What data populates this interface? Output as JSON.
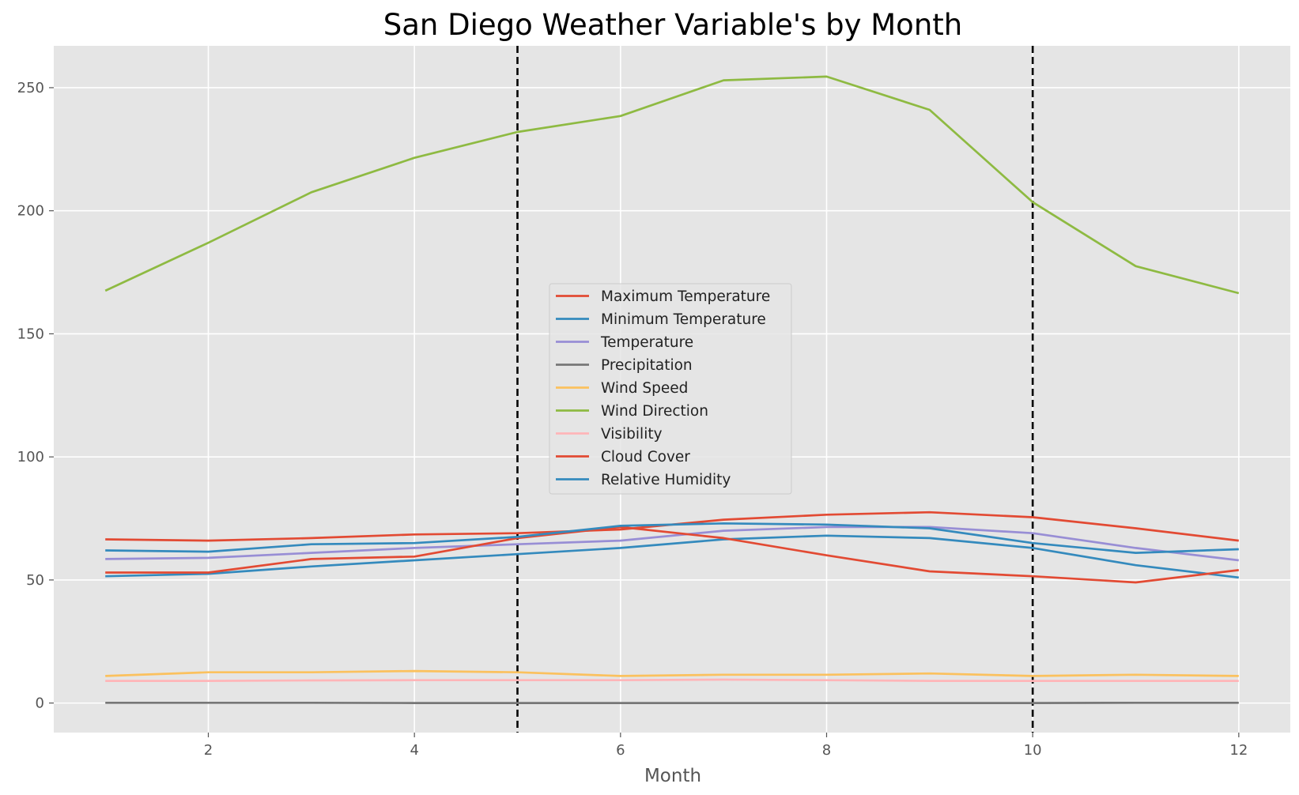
{
  "chart_data": {
    "type": "line",
    "title": "San Diego Weather Variable's by Month",
    "xlabel": "Month",
    "ylabel": "",
    "xlim": [
      0.5,
      12.5
    ],
    "ylim": [
      -12,
      267
    ],
    "xticks": [
      2,
      4,
      6,
      8,
      10,
      12
    ],
    "yticks": [
      0,
      50,
      100,
      150,
      200,
      250
    ],
    "grid": true,
    "legend_position": "center",
    "background": "#e5e5e5",
    "vertical_lines": [
      {
        "x": 5,
        "style": "dashed",
        "color": "#000000"
      },
      {
        "x": 10,
        "style": "dashed",
        "color": "#000000"
      }
    ],
    "x": [
      1,
      2,
      3,
      4,
      5,
      6,
      7,
      8,
      9,
      10,
      11,
      12
    ],
    "series": [
      {
        "name": "Maximum Temperature",
        "color": "#e24a33",
        "values": [
          66.5,
          66,
          67,
          68.5,
          69,
          70.5,
          74.5,
          76.5,
          77.5,
          75.5,
          71,
          66
        ]
      },
      {
        "name": "Minimum Temperature",
        "color": "#348abd",
        "values": [
          51.5,
          52.5,
          55.5,
          58,
          60.5,
          63,
          66.5,
          68,
          67,
          63,
          56,
          51
        ]
      },
      {
        "name": "Temperature",
        "color": "#988ed5",
        "values": [
          58.5,
          59,
          61,
          63,
          64.5,
          66,
          70,
          71.5,
          71.5,
          69,
          63,
          58
        ]
      },
      {
        "name": "Precipitation",
        "color": "#777777",
        "values": [
          0.1,
          0.1,
          0.1,
          0,
          0,
          0,
          0,
          0,
          0,
          0,
          0.1,
          0.1
        ]
      },
      {
        "name": "Wind Speed",
        "color": "#fbc15e",
        "values": [
          11,
          12.5,
          12.5,
          13,
          12.5,
          11,
          11.5,
          11.5,
          12,
          11,
          11.5,
          11
        ]
      },
      {
        "name": "Wind Direction",
        "color": "#8eba42",
        "values": [
          167.5,
          187,
          207.5,
          221.5,
          232,
          238.5,
          253,
          254.5,
          241,
          203.5,
          177.5,
          166.5
        ]
      },
      {
        "name": "Visibility",
        "color": "#ffb5b8",
        "values": [
          9,
          9,
          9.2,
          9.3,
          9.3,
          9.3,
          9.5,
          9.3,
          9,
          9,
          9,
          9
        ]
      },
      {
        "name": "Cloud Cover",
        "color": "#e24a33",
        "values": [
          53,
          53,
          58.5,
          59.5,
          67,
          71.5,
          67,
          60,
          53.5,
          51.5,
          49,
          54
        ]
      },
      {
        "name": "Relative Humidity",
        "color": "#348abd",
        "values": [
          62,
          61.5,
          64.5,
          65,
          67.5,
          72,
          73,
          72.5,
          71,
          65,
          61,
          62.5
        ]
      }
    ]
  }
}
